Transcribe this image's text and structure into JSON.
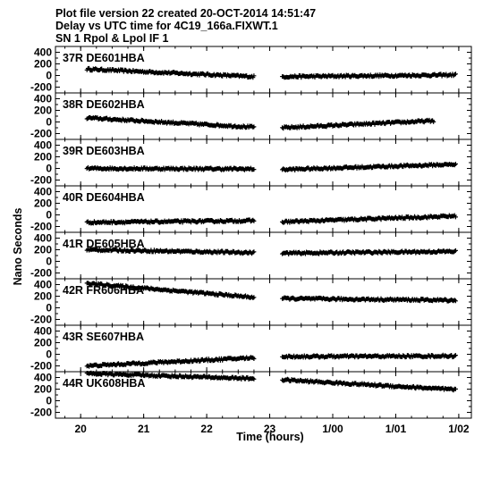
{
  "header": {
    "line1": "Plot file version 22  created 20-OCT-2014 14:51:47",
    "line2": "Delay vs UTC time for 4C19_166a.FIXWT.1",
    "line3": "SN 1  Rpol & Lpol  IF 1"
  },
  "chart_data": {
    "type": "scatter",
    "title": "Delay vs UTC time for 4C19_166a.FIXWT.1",
    "xlabel": "Time (hours)",
    "ylabel": "Nano Seconds",
    "xlim": [
      19.6,
      26.2
    ],
    "ylim": [
      -300,
      500
    ],
    "xticks": [
      {
        "v": 20,
        "label": "20"
      },
      {
        "v": 21,
        "label": "21"
      },
      {
        "v": 22,
        "label": "22"
      },
      {
        "v": 23,
        "label": "23"
      },
      {
        "v": 24,
        "label": "1/00"
      },
      {
        "v": 25,
        "label": "1/01"
      },
      {
        "v": 26,
        "label": "1/02"
      }
    ],
    "yticks": [
      400,
      200,
      0,
      -200
    ],
    "segments": [
      [
        20.1,
        22.75
      ],
      [
        23.2,
        25.95
      ]
    ],
    "panels": [
      {
        "label": "37R DE601HBA",
        "seg1": [
          [
            20.1,
            110
          ],
          [
            22.75,
            -20
          ]
        ],
        "seg2": [
          [
            23.2,
            -20
          ],
          [
            25.95,
            10
          ]
        ]
      },
      {
        "label": "38R DE602HBA",
        "seg1": [
          [
            20.1,
            70
          ],
          [
            22.75,
            -90
          ]
        ],
        "seg2": [
          [
            23.2,
            -100
          ],
          [
            25.6,
            20
          ]
        ]
      },
      {
        "label": "39R DE603HBA",
        "seg1": [
          [
            20.1,
            0
          ],
          [
            22.75,
            -10
          ]
        ],
        "seg2": [
          [
            23.2,
            -20
          ],
          [
            25.95,
            70
          ]
        ]
      },
      {
        "label": "40R DE604HBA",
        "seg1": [
          [
            20.1,
            -130
          ],
          [
            22.75,
            -100
          ]
        ],
        "seg2": [
          [
            23.2,
            -120
          ],
          [
            25.95,
            -20
          ]
        ]
      },
      {
        "label": "41R DE605HBA",
        "seg1": [
          [
            20.1,
            200
          ],
          [
            22.75,
            150
          ]
        ],
        "seg2": [
          [
            23.2,
            140
          ],
          [
            25.95,
            170
          ]
        ]
      },
      {
        "label": "42R FR606HBA",
        "seg1": [
          [
            20.1,
            420
          ],
          [
            22.75,
            180
          ]
        ],
        "seg2": [
          [
            23.2,
            160
          ],
          [
            25.95,
            130
          ]
        ]
      },
      {
        "label": "43R SE607HBA",
        "seg1": [
          [
            20.1,
            -200
          ],
          [
            22.75,
            -60
          ]
        ],
        "seg2": [
          [
            23.2,
            -40
          ],
          [
            25.95,
            -30
          ]
        ]
      },
      {
        "label": "44R UK608HBA",
        "seg1": [
          [
            20.1,
            470
          ],
          [
            22.75,
            380
          ]
        ],
        "seg2": [
          [
            23.2,
            360
          ],
          [
            25.95,
            190
          ]
        ]
      }
    ]
  }
}
